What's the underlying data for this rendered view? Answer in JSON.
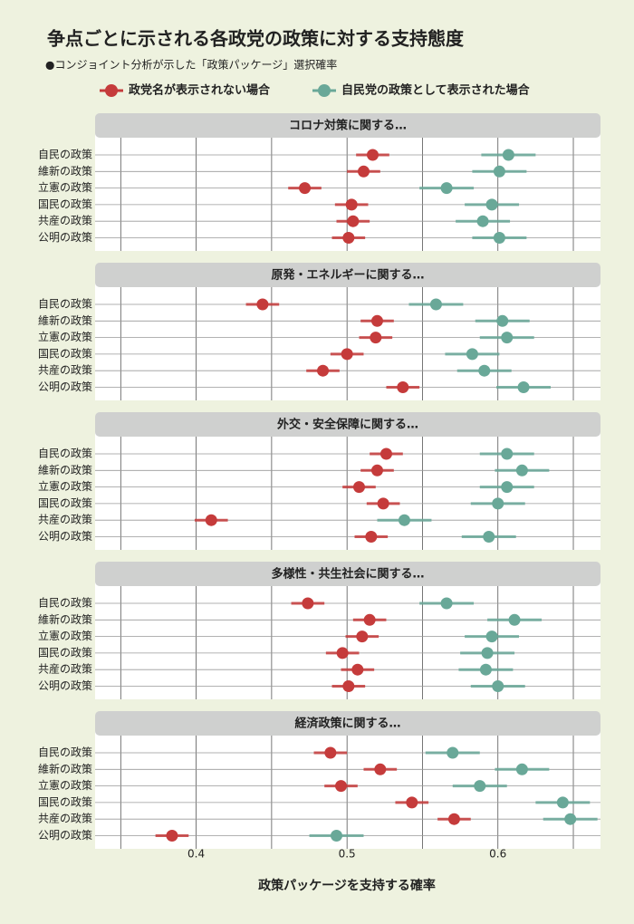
{
  "title": "争点ごとに示される各政党の政策に対する支持態度",
  "subtitle": "●コンジョイント分析が示した「政策パッケージ」選択確率",
  "legend": [
    {
      "name": "政党名が表示されない場合",
      "color": "#c53b3b"
    },
    {
      "name": "自民党の政策として表示された場合",
      "color": "#69a898"
    }
  ],
  "x_axis": {
    "label": "政策パッケージを支持する確率",
    "xlim": [
      0.333,
      0.668
    ],
    "xticks": [
      0.4,
      0.5,
      0.6
    ],
    "minor_xticks": [
      0.35,
      0.45,
      0.55,
      0.65
    ],
    "grid": true
  },
  "chart_data": [
    {
      "type": "dot",
      "title": "コロナ対策に関する…",
      "categories": [
        "自民の政策",
        "維新の政策",
        "立憲の政策",
        "国民の政策",
        "共産の政策",
        "公明の政策"
      ],
      "series": [
        {
          "values": [
            0.517,
            0.511,
            0.472,
            0.503,
            0.504,
            0.501
          ],
          "errors": [
            0.011,
            0.011,
            0.011,
            0.011,
            0.011,
            0.011
          ]
        },
        {
          "values": [
            0.607,
            0.601,
            0.566,
            0.596,
            0.59,
            0.601
          ],
          "errors": [
            0.018,
            0.018,
            0.018,
            0.018,
            0.018,
            0.018
          ]
        }
      ]
    },
    {
      "type": "dot",
      "title": "原発・エネルギーに関する…",
      "categories": [
        "自民の政策",
        "維新の政策",
        "立憲の政策",
        "国民の政策",
        "共産の政策",
        "公明の政策"
      ],
      "series": [
        {
          "values": [
            0.444,
            0.52,
            0.519,
            0.5,
            0.484,
            0.537
          ],
          "errors": [
            0.011,
            0.011,
            0.011,
            0.011,
            0.011,
            0.011
          ]
        },
        {
          "values": [
            0.559,
            0.603,
            0.606,
            0.583,
            0.591,
            0.617
          ],
          "errors": [
            0.018,
            0.018,
            0.018,
            0.018,
            0.018,
            0.018
          ]
        }
      ]
    },
    {
      "type": "dot",
      "title": "外交・安全保障に関する…",
      "categories": [
        "自民の政策",
        "維新の政策",
        "立憲の政策",
        "国民の政策",
        "共産の政策",
        "公明の政策"
      ],
      "series": [
        {
          "values": [
            0.526,
            0.52,
            0.508,
            0.524,
            0.41,
            0.516
          ],
          "errors": [
            0.011,
            0.011,
            0.011,
            0.011,
            0.011,
            0.011
          ]
        },
        {
          "values": [
            0.606,
            0.616,
            0.606,
            0.6,
            0.538,
            0.594
          ],
          "errors": [
            0.018,
            0.018,
            0.018,
            0.018,
            0.018,
            0.018
          ]
        }
      ]
    },
    {
      "type": "dot",
      "title": "多様性・共生社会に関する…",
      "categories": [
        "自民の政策",
        "維新の政策",
        "立憲の政策",
        "国民の政策",
        "共産の政策",
        "公明の政策"
      ],
      "series": [
        {
          "values": [
            0.474,
            0.515,
            0.51,
            0.497,
            0.507,
            0.501
          ],
          "errors": [
            0.011,
            0.011,
            0.011,
            0.011,
            0.011,
            0.011
          ]
        },
        {
          "values": [
            0.566,
            0.611,
            0.596,
            0.593,
            0.592,
            0.6
          ],
          "errors": [
            0.018,
            0.018,
            0.018,
            0.018,
            0.018,
            0.018
          ]
        }
      ]
    },
    {
      "type": "dot",
      "title": "経済政策に関する…",
      "categories": [
        "自民の政策",
        "維新の政策",
        "立憲の政策",
        "国民の政策",
        "共産の政策",
        "公明の政策"
      ],
      "series": [
        {
          "values": [
            0.489,
            0.522,
            0.496,
            0.543,
            0.571,
            0.384
          ],
          "errors": [
            0.011,
            0.011,
            0.011,
            0.011,
            0.011,
            0.011
          ]
        },
        {
          "values": [
            0.57,
            0.616,
            0.588,
            0.643,
            0.648,
            0.493
          ],
          "errors": [
            0.018,
            0.018,
            0.018,
            0.018,
            0.018,
            0.018
          ]
        }
      ]
    }
  ]
}
